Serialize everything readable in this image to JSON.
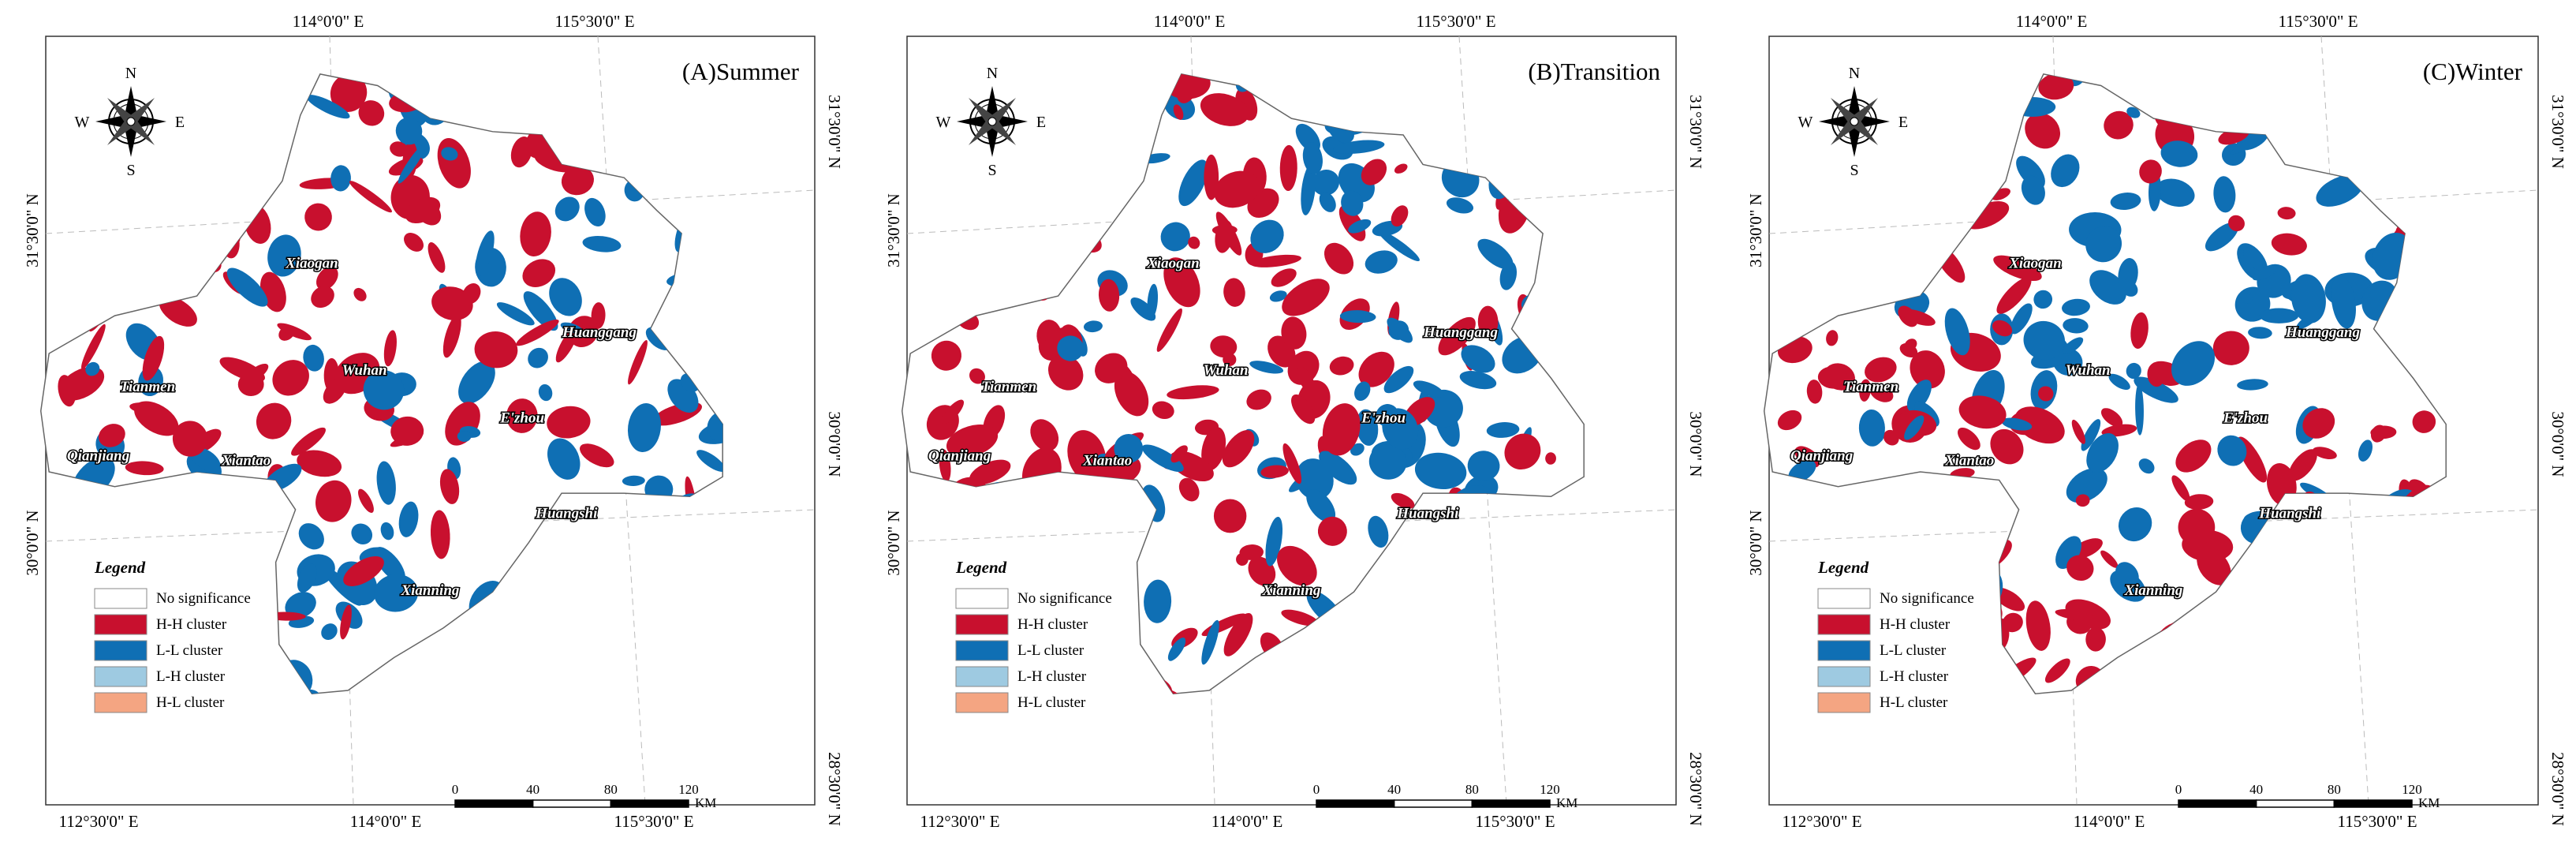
{
  "panels": [
    {
      "title": "(A)Summer"
    },
    {
      "title": "(B)Transition"
    },
    {
      "title": "(C)Winter"
    }
  ],
  "top_labels": [
    "114°0'0\" E",
    "115°30'0\" E"
  ],
  "bottom_labels": [
    "112°30'0\" E",
    "114°0'0\" E",
    "115°30'0\" E"
  ],
  "left_labels": [
    "31°30'0\" N",
    "30°0'0\" N"
  ],
  "right_labels": [
    "31°30'0\" N",
    "30°0'0\" N",
    "28°30'0\" N"
  ],
  "cities": [
    "Xiaogan",
    "Tianmen",
    "Wuhan",
    "Huanggang",
    "Qianjiang",
    "Xiantao",
    "E'zhou",
    "Huangshi",
    "Xianning"
  ],
  "compass": [
    "N",
    "S",
    "W",
    "E"
  ],
  "legend": {
    "title": "Legend",
    "items": [
      "No significance",
      "H-H cluster",
      "L-L cluster",
      "L-H cluster",
      "H-L cluster"
    ]
  },
  "scale": {
    "ticks": [
      "0",
      "40",
      "80",
      "120"
    ],
    "unit": "KM"
  }
}
